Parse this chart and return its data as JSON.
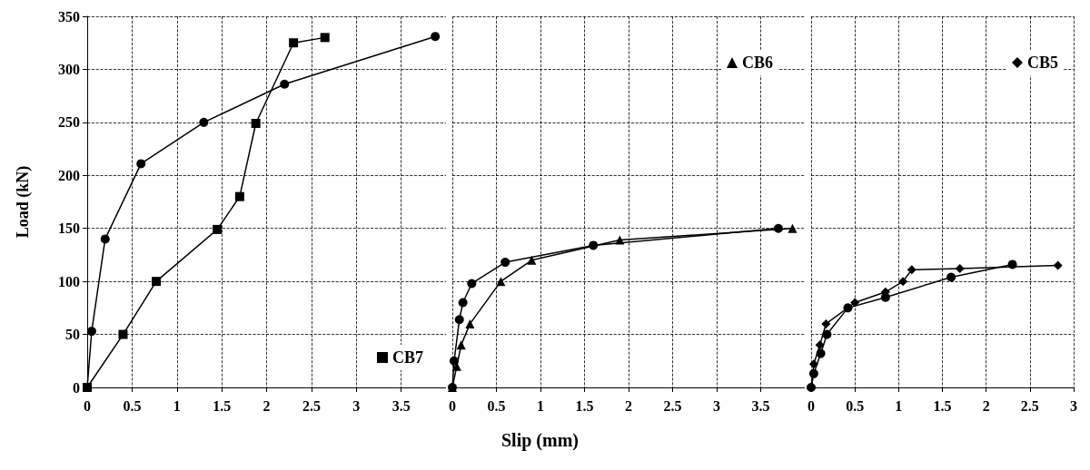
{
  "chart_data": [
    {
      "type": "line",
      "ylabel": "Load (kN)",
      "xlim": [
        0,
        4
      ],
      "xticks": [
        0,
        0.5,
        1,
        1.5,
        2,
        2.5,
        3,
        3.5
      ],
      "ylim": [
        0,
        350
      ],
      "yticks": [
        0,
        50,
        100,
        150,
        200,
        250,
        300,
        350
      ],
      "grid": true,
      "legend": "bottom right",
      "line_style": "solid",
      "series": [
        {
          "name": "CB7",
          "color": "#000000",
          "marker": "square",
          "x": [
            0,
            0.4,
            0.77,
            1.45,
            1.7,
            1.88,
            2.3,
            2.65
          ],
          "values": [
            0,
            50,
            100,
            149,
            180,
            249,
            325,
            330
          ]
        },
        {
          "color": "#000000",
          "marker": "circle",
          "x": [
            0,
            0.05,
            0.2,
            0.6,
            1.3,
            2.2,
            3.88
          ],
          "values": [
            0,
            53,
            140,
            211,
            250,
            286,
            331
          ]
        }
      ]
    },
    {
      "type": "line",
      "xlabel": "Slip (mm)",
      "xlim": [
        0,
        4
      ],
      "xticks": [
        0,
        0.5,
        1,
        1.5,
        2,
        2.5,
        3,
        3.5
      ],
      "ylim": [
        0,
        350
      ],
      "yticks": [
        0,
        50,
        100,
        150,
        200,
        250,
        300,
        350
      ],
      "tick_labels": "x",
      "grid": true,
      "legend": "top right",
      "line_style": "solid",
      "series": [
        {
          "color": "#000000",
          "marker": "circle",
          "x": [
            0,
            0.02,
            0.08,
            0.12,
            0.22,
            0.6,
            1.6,
            3.7
          ],
          "values": [
            0,
            25,
            64,
            80,
            98,
            118,
            134,
            150
          ]
        },
        {
          "name": "CB6",
          "color": "#000000",
          "marker": "triangle",
          "x": [
            0,
            0.05,
            0.1,
            0.2,
            0.55,
            0.9,
            1.9,
            3.86
          ],
          "values": [
            0,
            20,
            40,
            60,
            100,
            120,
            139,
            150
          ]
        }
      ]
    },
    {
      "type": "line",
      "xlim": [
        0,
        3
      ],
      "xticks": [
        0,
        0.5,
        1,
        1.5,
        2,
        2.5,
        3
      ],
      "ylim": [
        0,
        350
      ],
      "yticks": [
        0,
        50,
        100,
        150,
        200,
        250,
        300,
        350
      ],
      "tick_labels": "x",
      "grid": true,
      "legend": "top right",
      "line_style": "solid",
      "series": [
        {
          "color": "#000000",
          "marker": "circle",
          "x": [
            0,
            0.03,
            0.11,
            0.18,
            0.42,
            0.85,
            1.6,
            2.3
          ],
          "values": [
            0,
            13,
            32,
            50,
            75,
            85,
            104,
            116
          ]
        },
        {
          "name": "CB5",
          "color": "#000000",
          "marker": "diamond",
          "x": [
            0,
            0.03,
            0.1,
            0.17,
            0.5,
            0.85,
            1.05,
            1.15,
            1.7,
            2.82
          ],
          "values": [
            0,
            22,
            40,
            60,
            80,
            90,
            100,
            111,
            112,
            115
          ]
        }
      ]
    }
  ]
}
